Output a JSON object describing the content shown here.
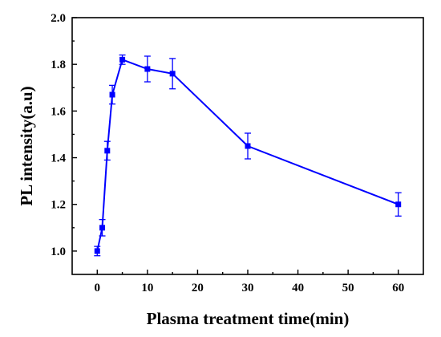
{
  "chart_data": {
    "type": "line",
    "title": "",
    "xlabel": "Plasma treatment time(min)",
    "ylabel": "PL intensity(a.u)",
    "xlim": [
      -5,
      65
    ],
    "ylim": [
      0.9,
      2.0
    ],
    "x_ticks": [
      0,
      10,
      20,
      30,
      40,
      50,
      60
    ],
    "y_ticks": [
      1.0,
      1.2,
      1.4,
      1.6,
      1.8,
      2.0
    ],
    "x_tick_labels": [
      "0",
      "10",
      "20",
      "30",
      "40",
      "50",
      "60"
    ],
    "y_tick_labels": [
      "1.0",
      "1.2",
      "1.4",
      "1.6",
      "1.8",
      "2.0"
    ],
    "grid": false,
    "legend": "none",
    "series": [
      {
        "color": "#0000ff",
        "marker": "square",
        "x": [
          0,
          1,
          2,
          3,
          5,
          10,
          15,
          30,
          60
        ],
        "y": [
          1.0,
          1.1,
          1.43,
          1.67,
          1.82,
          1.78,
          1.76,
          1.45,
          1.2
        ],
        "error": [
          0.02,
          0.035,
          0.04,
          0.04,
          0.02,
          0.055,
          0.065,
          0.055,
          0.05
        ]
      }
    ]
  }
}
